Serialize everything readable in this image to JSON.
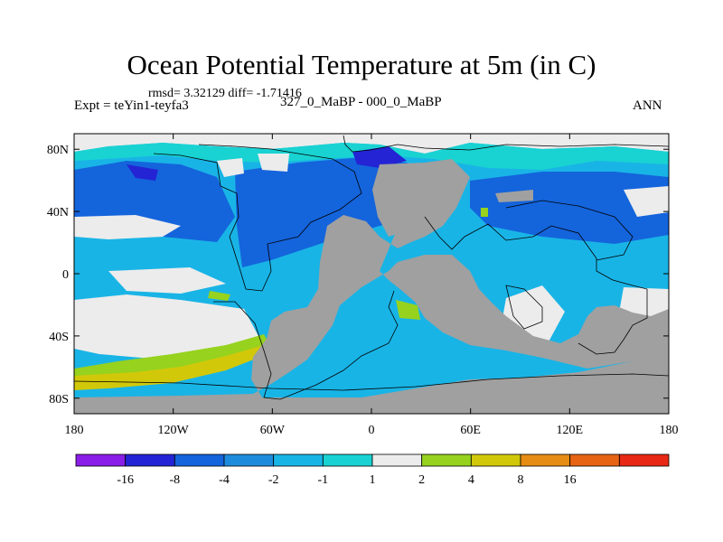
{
  "title": "Ocean Potential Temperature at 5m (in C)",
  "stats": "rmsd= 3.32129 diff= -1.71416",
  "experiment": "Expt = teYin1-teyfa3",
  "subtitle": "327_0_MaBP - 000_0_MaBP",
  "season": "ANN",
  "colors": {
    "land": "#a0a0a0",
    "near_zero": "#ececec",
    "neg_16": "#8a1ee6",
    "neg_8": "#2424d4",
    "neg_4": "#1464dc",
    "neg_2": "#19b4e6",
    "neg_1": "#19d2d2",
    "pos_1": "#ececec",
    "pos_2": "#96d21e",
    "pos_4": "#d2c80a",
    "pos_8": "#e68c14",
    "pos_16": "#e64614",
    "pos_max": "#e61e14"
  },
  "map": {
    "x_ticks": [
      "180",
      "120W",
      "60W",
      "0",
      "60E",
      "120E",
      "180"
    ],
    "y_ticks": [
      "80N",
      "40N",
      "0",
      "40S",
      "80S"
    ]
  },
  "colorbar": {
    "labels": [
      "-16",
      "-8",
      "-4",
      "-2",
      "-1",
      "1",
      "2",
      "4",
      "8",
      "16"
    ],
    "bin_colors": [
      "#8a1ee6",
      "#2424d4",
      "#1464dc",
      "#1e8cdc",
      "#19b4e6",
      "#19d2d2",
      "#ececec",
      "#96d21e",
      "#d2c80a",
      "#e68c14",
      "#e66414",
      "#e62814"
    ]
  }
}
